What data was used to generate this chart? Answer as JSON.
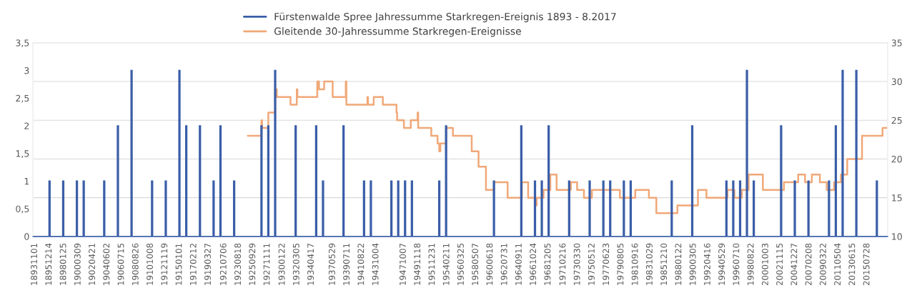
{
  "chart_data": {
    "type": "bar",
    "legend": "top",
    "grid": "y",
    "ylim": [
      0,
      3.5
    ],
    "yticks": [
      0,
      {
        "value": 0.5,
        "label": "0,5"
      },
      1,
      {
        "value": 1.5,
        "label": "1,5"
      },
      2,
      {
        "value": 2.5,
        "label": "2,5"
      },
      3,
      {
        "value": 3.5,
        "label": "3,5"
      }
    ],
    "y2lim": [
      10,
      35
    ],
    "y2ticks": [
      10,
      15,
      20,
      25,
      30,
      35
    ],
    "xlim": [
      "1893-08",
      "2018-08"
    ],
    "xticks": [
      {
        "value": "1893-11-01",
        "label": "18931101"
      },
      {
        "value": "1895-12-14",
        "label": "18951214"
      },
      {
        "value": "1898-01-25",
        "label": "18980125"
      },
      {
        "value": "1900-03-09",
        "label": "19000309"
      },
      {
        "value": "1902-04-21",
        "label": "19020421"
      },
      {
        "value": "1904-06-02",
        "label": "19040602"
      },
      {
        "value": "1906-07-15",
        "label": "19060715"
      },
      {
        "value": "1908-08-26",
        "label": "19080826"
      },
      {
        "value": "1910-10-08",
        "label": "19101008"
      },
      {
        "value": "1912-11-19",
        "label": "19121119"
      },
      {
        "value": "1915-01-01",
        "label": "19150101"
      },
      {
        "value": "1917-02-12",
        "label": "19170212"
      },
      {
        "value": "1919-03-27",
        "label": "19190327"
      },
      {
        "value": "1921-07-06",
        "label": "19210706"
      },
      {
        "value": "1923-08-18",
        "label": "19230818"
      },
      {
        "value": "1925-09-29",
        "label": "19250929"
      },
      {
        "value": "1927-11-11",
        "label": "19271111"
      },
      {
        "value": "1930-01-22",
        "label": "19300122"
      },
      {
        "value": "1932-03-05",
        "label": "19320305"
      },
      {
        "value": "1934-04-17",
        "label": "19340417"
      },
      {
        "value": "1937-05-29",
        "label": "19370529"
      },
      {
        "value": "1939-07-11",
        "label": "19390711"
      },
      {
        "value": "1941-08-22",
        "label": "19410822"
      },
      {
        "value": "1943-10-04",
        "label": "19431004"
      },
      {
        "value": "1947-10-07",
        "label": "19471007"
      },
      {
        "value": "1949-11-18",
        "label": "19491118"
      },
      {
        "value": "1951-12-31",
        "label": "19511231"
      },
      {
        "value": "1954-02-11",
        "label": "19540211"
      },
      {
        "value": "1956-03-25",
        "label": "19560325"
      },
      {
        "value": "1958-05-07",
        "label": "19580507"
      },
      {
        "value": "1960-06-18",
        "label": "19600618"
      },
      {
        "value": "1962-07-31",
        "label": "19620731"
      },
      {
        "value": "1964-09-11",
        "label": "19640911"
      },
      {
        "value": "1966-10-24",
        "label": "19661024"
      },
      {
        "value": "1968-12-05",
        "label": "19681205"
      },
      {
        "value": "1971-02-16",
        "label": "19710216"
      },
      {
        "value": "1973-03-30",
        "label": "19730330"
      },
      {
        "value": "1975-05-12",
        "label": "19750512"
      },
      {
        "value": "1977-06-23",
        "label": "19770623"
      },
      {
        "value": "1979-08-05",
        "label": "19790805"
      },
      {
        "value": "1981-09-16",
        "label": "19810916"
      },
      {
        "value": "1983-10-29",
        "label": "19831029"
      },
      {
        "value": "1985-12-10",
        "label": "19851210"
      },
      {
        "value": "1988-01-22",
        "label": "19880122"
      },
      {
        "value": "1990-03-05",
        "label": "19900305"
      },
      {
        "value": "1992-04-16",
        "label": "19920416"
      },
      {
        "value": "1994-05-29",
        "label": "19940529"
      },
      {
        "value": "1996-07-10",
        "label": "19960710"
      },
      {
        "value": "1998-08-22",
        "label": "19980822"
      },
      {
        "value": "2000-10-03",
        "label": "20001003"
      },
      {
        "value": "2002-11-15",
        "label": "20021115"
      },
      {
        "value": "2004-12-27",
        "label": "20041227"
      },
      {
        "value": "2007-02-08",
        "label": "20070208"
      },
      {
        "value": "2009-03-22",
        "label": "20090322"
      },
      {
        "value": "2011-05-04",
        "label": "20110504"
      },
      {
        "value": "2013-06-15",
        "label": "20130615"
      },
      {
        "value": "2015-07-28",
        "label": "20150728"
      }
    ],
    "series": [
      {
        "name": "Fürstenwalde Spree Jahressumme Starkregen-Ereignis 1893 - 8.2017",
        "color": "#3a5ea8",
        "x": [
          "1896",
          "1898",
          "1900",
          "1901",
          "1904",
          "1906",
          "1908",
          "1911",
          "1913",
          "1915",
          "1916",
          "1918",
          "1920",
          "1921",
          "1923",
          "1927",
          "1928",
          "1929",
          "1932",
          "1935",
          "1936",
          "1939",
          "1942",
          "1943",
          "1946",
          "1947",
          "1948",
          "1949",
          "1953",
          "1954",
          "1961",
          "1965",
          "1967",
          "1968",
          "1969",
          "1972",
          "1975",
          "1977",
          "1978",
          "1980",
          "1981",
          "1987",
          "1990",
          "1995",
          "1996",
          "1997",
          "1998",
          "1999",
          "2003",
          "2005",
          "2007",
          "2010",
          "2011",
          "2012",
          "2014",
          "2017"
        ],
        "values": [
          1,
          1,
          1,
          1,
          1,
          2,
          3,
          1,
          1,
          3,
          2,
          2,
          1,
          2,
          1,
          2,
          2,
          3,
          2,
          2,
          1,
          2,
          1,
          1,
          1,
          1,
          1,
          1,
          1,
          2,
          1,
          2,
          1,
          1,
          2,
          1,
          1,
          1,
          1,
          1,
          1,
          1,
          2,
          1,
          1,
          1,
          3,
          1,
          2,
          1,
          1,
          1,
          2,
          3,
          3,
          1
        ]
      },
      {
        "name": "Gleitende 30-Jahressumme Starkregen-Ereignisse",
        "type": "step",
        "axis": "y2",
        "color": "#f0a878",
        "x": [
          "1925-01",
          "1927-01",
          "1927-02",
          "1928-01",
          "1929-01",
          "1929-04",
          "1931-04",
          "1932-03",
          "1932-04",
          "1935-03",
          "1935-06",
          "1936-03",
          "1937-06",
          "1939-05",
          "1939-06",
          "1942-07",
          "1942-08",
          "1943-06",
          "1944-10",
          "1946-10",
          "1946-11",
          "1947-11",
          "1948-11",
          "1949-11",
          "1949-12",
          "1951-11",
          "1952-10",
          "1953-01",
          "1953-03",
          "1954-01",
          "1955-01",
          "1957-10",
          "1958-10",
          "1959-11",
          "1961-01",
          "1963-01",
          "1965-02",
          "1966-01",
          "1967-03",
          "1967-04",
          "1968-04",
          "1969-04",
          "1970-03",
          "1972-04",
          "1973-03",
          "1974-03",
          "1975-05",
          "1979-06",
          "1981-09",
          "1983-09",
          "1984-10",
          "1987-11",
          "1990-11",
          "1992-02",
          "1995-03",
          "1996-03",
          "1997-04",
          "1998-04",
          "2000-05",
          "2003-06",
          "2005-07",
          "2006-07",
          "2007-07",
          "2008-09",
          "2009-09",
          "2010-10",
          "2011-10",
          "2012-09",
          "2014-11",
          "2017-11",
          "2018-06"
        ],
        "values": [
          23,
          25,
          24,
          26,
          29,
          28,
          27,
          29,
          28,
          30,
          29,
          30,
          28,
          30,
          27,
          28,
          27,
          28,
          27,
          26,
          25,
          24,
          25,
          26,
          24,
          23,
          22,
          21,
          22,
          24,
          23,
          21,
          19,
          16,
          17,
          15,
          17,
          15,
          14,
          15,
          16,
          18,
          16,
          17,
          16,
          15,
          16,
          15,
          16,
          15,
          13,
          14,
          16,
          15,
          16,
          15,
          16,
          18,
          16,
          17,
          18,
          17,
          18,
          17,
          16,
          17,
          18,
          20,
          23,
          24,
          24
        ]
      }
    ]
  }
}
